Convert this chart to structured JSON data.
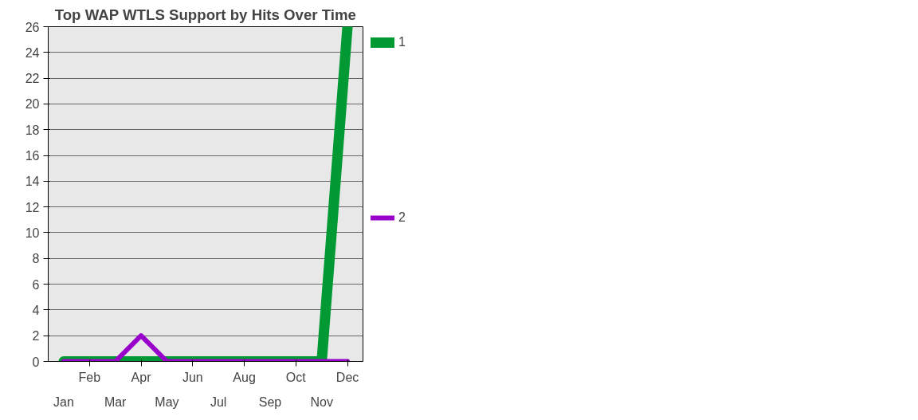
{
  "chart_data": {
    "type": "line",
    "title": "Top WAP WTLS Support by Hits Over Time",
    "categories": [
      "Jan",
      "Feb",
      "Mar",
      "Apr",
      "May",
      "Jun",
      "Jul",
      "Aug",
      "Sep",
      "Oct",
      "Nov",
      "Dec"
    ],
    "series": [
      {
        "name": "1",
        "color": "#009933",
        "values": [
          0,
          0,
          0,
          0,
          0,
          0,
          0,
          0,
          0,
          0,
          0,
          26
        ]
      },
      {
        "name": "2",
        "color": "#9900cc",
        "values": [
          0,
          0,
          0,
          2,
          0,
          0,
          0,
          0,
          0,
          0,
          0,
          0
        ]
      }
    ],
    "ylim": [
      0,
      26
    ],
    "yticks": [
      0,
      2,
      4,
      6,
      8,
      10,
      12,
      14,
      16,
      18,
      20,
      22,
      24,
      26
    ],
    "grid": "y",
    "legend": "right",
    "marker": "none",
    "line_style": "solid"
  }
}
